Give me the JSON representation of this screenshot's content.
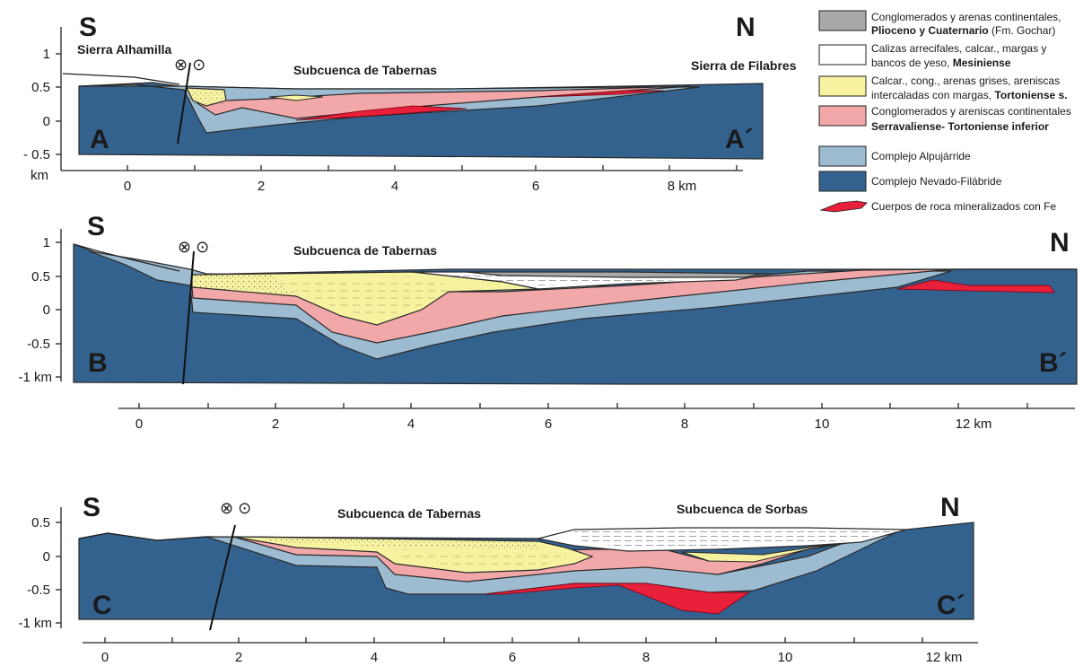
{
  "colors": {
    "nevado": "#33628f",
    "alpujarride": "#9dbcd1",
    "serravaliense": "#f2a7a8",
    "tortoniense": "#f7f2a0",
    "mesiniense": "#ffffff",
    "plioceno": "#a9a9a9",
    "fe": "#e8203a"
  },
  "legend": [
    {
      "key": "plioceno",
      "lines": [
        [
          "Conglomerados y arenas continentales,",
          ""
        ],
        [
          "Plioceno y Cuaternario",
          " (Fm. Gochar)"
        ]
      ]
    },
    {
      "key": "mesiniense",
      "lines": [
        [
          "Calizas arrecifales, calcar., margas y",
          ""
        ],
        [
          "bancos de yeso, ",
          "Mesiniense"
        ]
      ]
    },
    {
      "key": "tortoniense",
      "lines": [
        [
          "Calcar., cong., arenas grises, areniscas",
          ""
        ],
        [
          "intercaladas con margas, ",
          "Tortoniense s."
        ]
      ]
    },
    {
      "key": "serravaliense",
      "lines": [
        [
          "Conglomerados y areniscas continentales",
          ""
        ],
        [
          "",
          "Serravaliense- Tortoniense inferior"
        ]
      ]
    },
    {
      "key": "alpujarride",
      "lines": [
        [
          "Complejo Alpujárride",
          ""
        ]
      ]
    },
    {
      "key": "nevado",
      "lines": [
        [
          "Complejo Nevado-Filábride",
          ""
        ]
      ]
    },
    {
      "key": "fe",
      "lines": [
        [
          "Cuerpos de roca mineralizados con Fe",
          ""
        ]
      ]
    }
  ],
  "sections": {
    "A": {
      "south": "S",
      "north": "N",
      "start_label": "A",
      "end_label": "A´",
      "basin_labels": [
        "Subcuenca de Tabernas"
      ],
      "range_labels": [
        "Sierra Alhamilla",
        "Sierra de Filabres"
      ],
      "y_ticks": [
        "1",
        "0.5",
        "0",
        "- 0.5"
      ],
      "y_unit": "km",
      "x_ticks": [
        "0",
        "2",
        "4",
        "6",
        "8 km"
      ]
    },
    "B": {
      "south": "S",
      "north": "N",
      "start_label": "B",
      "end_label": "B´",
      "basin_labels": [
        "Subcuenca de Tabernas"
      ],
      "y_ticks": [
        "1",
        "0.5",
        "0",
        "-0.5",
        "-1 km"
      ],
      "x_ticks": [
        "0",
        "2",
        "4",
        "6",
        "8",
        "10",
        "12 km"
      ]
    },
    "C": {
      "south": "S",
      "north": "N",
      "start_label": "C",
      "end_label": "C´",
      "basin_labels": [
        "Subcuenca de Tabernas",
        "Subcuenca de Sorbas"
      ],
      "y_ticks": [
        "0.5",
        "0",
        "-0.5",
        "-1 km"
      ],
      "x_ticks": [
        "0",
        "2",
        "4",
        "6",
        "8",
        "10",
        "12 km"
      ]
    }
  },
  "fault_symbol": "⊗ ⊙"
}
